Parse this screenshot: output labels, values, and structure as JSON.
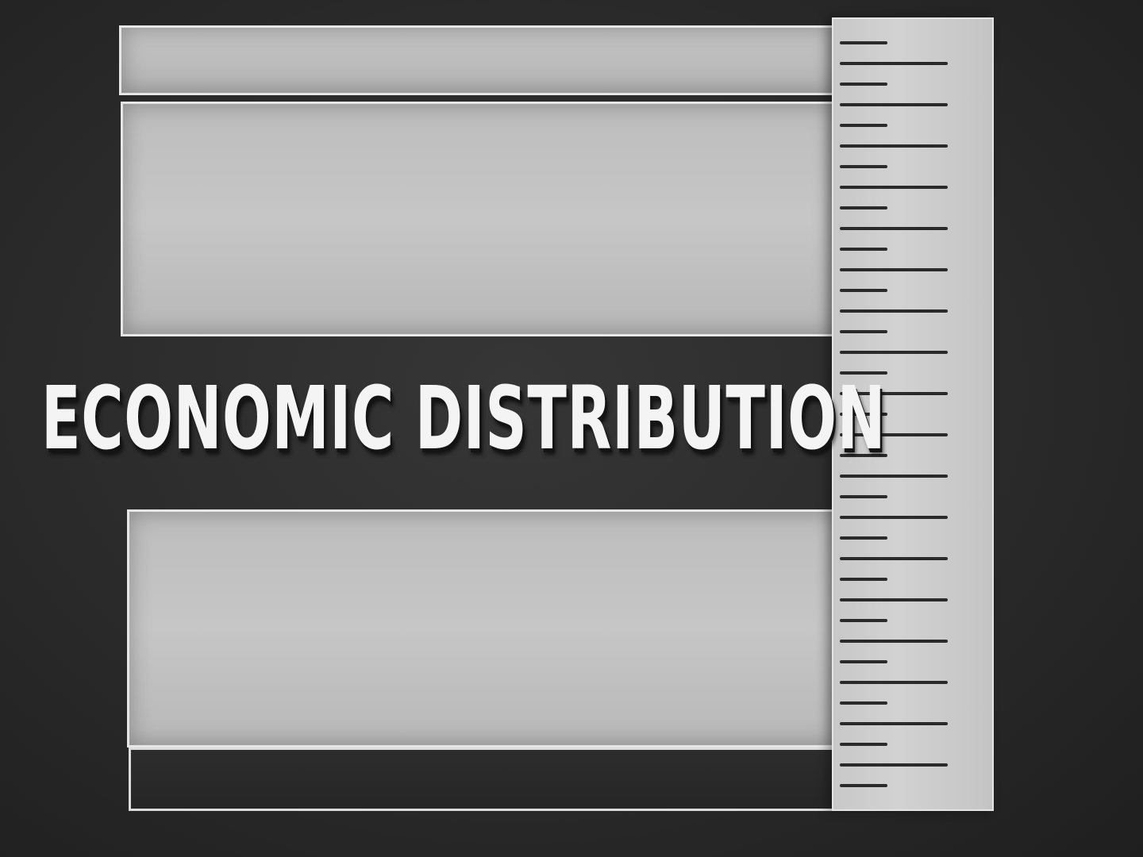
{
  "title": "ECONOMIC DISTRIBUTION",
  "colors": {
    "background": "#2b2b2b",
    "panel": "#c2c2c2",
    "panel_border": "#e6e6e6",
    "ruler": "#cccccc",
    "ruler_ticks": "#2a2a2a",
    "title_text": "#f4f4f4"
  }
}
